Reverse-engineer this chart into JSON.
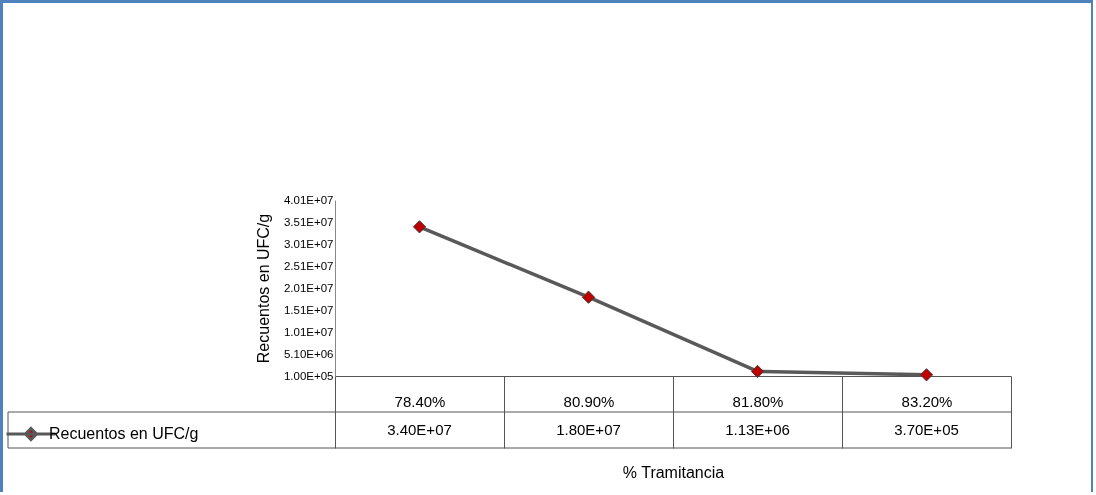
{
  "chart_data": {
    "type": "line",
    "xlabel": "% Tramitancia",
    "ylabel": "Recuentos en  UFC/g",
    "categories": [
      "78.40%",
      "80.90%",
      "81.80%",
      "83.20%"
    ],
    "series": [
      {
        "name": "Recuentos en UFC/g",
        "color": "#595959",
        "values": [
          34000000,
          18000000,
          1130000,
          370000
        ],
        "value_labels": [
          "3.40E+07",
          "1.80E+07",
          "1.13E+06",
          "3.70E+05"
        ]
      }
    ],
    "ylim": [
      100000,
      40100000
    ],
    "yticks": [
      {
        "value": 100000,
        "label": "1.00E+05"
      },
      {
        "value": 5100000,
        "label": "5.10E+06"
      },
      {
        "value": 10100000,
        "label": "1.01E+07"
      },
      {
        "value": 15100000,
        "label": "1.51E+07"
      },
      {
        "value": 20100000,
        "label": "2.01E+07"
      },
      {
        "value": 25100000,
        "label": "2.51E+07"
      },
      {
        "value": 30100000,
        "label": "3.01E+07"
      },
      {
        "value": 35100000,
        "label": "3.51E+07"
      },
      {
        "value": 40100000,
        "label": "4.01E+07"
      }
    ],
    "marker": "diamond",
    "legend": "bottom left",
    "grid": false
  }
}
